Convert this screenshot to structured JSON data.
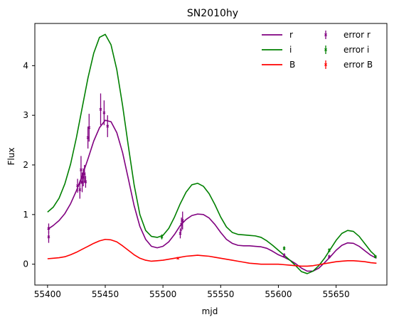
{
  "chart_data": {
    "type": "line",
    "title": "SN2010hy",
    "xlabel": "mjd",
    "ylabel": "Flux",
    "xlim": [
      55389,
      55694
    ],
    "ylim": [
      -0.42,
      4.85
    ],
    "xticks": [
      55400,
      55450,
      55500,
      55550,
      55600,
      55650
    ],
    "yticks": [
      0,
      1,
      2,
      3,
      4
    ],
    "grid": false,
    "legend_position": "top-right",
    "series": [
      {
        "name": "r",
        "kind": "line",
        "color": "#800080",
        "x": [
          55400,
          55405,
          55410,
          55415,
          55420,
          55425,
          55430,
          55435,
          55440,
          55445,
          55450,
          55455,
          55460,
          55465,
          55470,
          55475,
          55480,
          55485,
          55490,
          55495,
          55500,
          55505,
          55510,
          55515,
          55520,
          55525,
          55530,
          55535,
          55540,
          55545,
          55550,
          55555,
          55560,
          55565,
          55570,
          55575,
          55580,
          55585,
          55590,
          55595,
          55600,
          55605,
          55610,
          55615,
          55620,
          55625,
          55630,
          55635,
          55640,
          55645,
          55650,
          55655,
          55660,
          55665,
          55670,
          55675,
          55680,
          55685
        ],
        "y": [
          0.7,
          0.78,
          0.88,
          1.02,
          1.22,
          1.48,
          1.78,
          2.12,
          2.48,
          2.75,
          2.9,
          2.87,
          2.65,
          2.25,
          1.72,
          1.18,
          0.76,
          0.5,
          0.36,
          0.33,
          0.36,
          0.45,
          0.6,
          0.78,
          0.9,
          0.98,
          1.01,
          1.0,
          0.93,
          0.8,
          0.64,
          0.5,
          0.42,
          0.38,
          0.37,
          0.37,
          0.36,
          0.35,
          0.32,
          0.26,
          0.19,
          0.14,
          0.08,
          0.01,
          -0.08,
          -0.14,
          -0.14,
          -0.08,
          0.03,
          0.15,
          0.28,
          0.38,
          0.43,
          0.42,
          0.36,
          0.27,
          0.18,
          0.12
        ]
      },
      {
        "name": "i",
        "kind": "line",
        "color": "#008000",
        "x": [
          55400,
          55405,
          55410,
          55415,
          55420,
          55425,
          55430,
          55435,
          55440,
          55445,
          55450,
          55455,
          55460,
          55465,
          55470,
          55475,
          55480,
          55485,
          55490,
          55495,
          55500,
          55505,
          55510,
          55515,
          55520,
          55525,
          55530,
          55535,
          55540,
          55545,
          55550,
          55555,
          55560,
          55565,
          55570,
          55575,
          55580,
          55585,
          55590,
          55595,
          55600,
          55605,
          55610,
          55615,
          55620,
          55625,
          55630,
          55635,
          55640,
          55645,
          55650,
          55655,
          55660,
          55665,
          55670,
          55675,
          55680,
          55685
        ],
        "y": [
          1.05,
          1.15,
          1.33,
          1.62,
          2.02,
          2.55,
          3.15,
          3.75,
          4.25,
          4.57,
          4.63,
          4.42,
          3.92,
          3.2,
          2.38,
          1.6,
          1.0,
          0.68,
          0.56,
          0.54,
          0.58,
          0.72,
          0.95,
          1.22,
          1.45,
          1.6,
          1.63,
          1.57,
          1.42,
          1.2,
          0.95,
          0.75,
          0.64,
          0.6,
          0.59,
          0.58,
          0.57,
          0.54,
          0.47,
          0.38,
          0.28,
          0.18,
          0.08,
          -0.03,
          -0.15,
          -0.19,
          -0.14,
          -0.03,
          0.12,
          0.3,
          0.48,
          0.62,
          0.68,
          0.66,
          0.56,
          0.41,
          0.26,
          0.15
        ]
      },
      {
        "name": "B",
        "kind": "line",
        "color": "#ff0000",
        "x": [
          55400,
          55405,
          55410,
          55415,
          55420,
          55425,
          55430,
          55435,
          55440,
          55445,
          55450,
          55455,
          55460,
          55465,
          55470,
          55475,
          55480,
          55485,
          55490,
          55495,
          55500,
          55505,
          55510,
          55515,
          55520,
          55525,
          55530,
          55535,
          55540,
          55545,
          55550,
          55555,
          55560,
          55565,
          55570,
          55575,
          55580,
          55585,
          55590,
          55595,
          55600,
          55605,
          55610,
          55615,
          55620,
          55625,
          55630,
          55635,
          55640,
          55645,
          55650,
          55655,
          55660,
          55665,
          55670,
          55675,
          55680,
          55685
        ],
        "y": [
          0.11,
          0.12,
          0.13,
          0.15,
          0.19,
          0.24,
          0.3,
          0.36,
          0.42,
          0.47,
          0.5,
          0.49,
          0.45,
          0.37,
          0.28,
          0.19,
          0.12,
          0.08,
          0.06,
          0.07,
          0.08,
          0.1,
          0.12,
          0.14,
          0.16,
          0.17,
          0.18,
          0.17,
          0.16,
          0.14,
          0.12,
          0.1,
          0.08,
          0.06,
          0.04,
          0.02,
          0.01,
          0.0,
          0.0,
          0.0,
          0.0,
          -0.01,
          -0.02,
          -0.03,
          -0.04,
          -0.04,
          -0.03,
          -0.01,
          0.01,
          0.03,
          0.05,
          0.06,
          0.07,
          0.07,
          0.06,
          0.05,
          0.03,
          0.02
        ]
      },
      {
        "name": "error r",
        "kind": "errorbar",
        "color": "#800080",
        "x": [
          55401,
          55401,
          55426,
          55428,
          55429,
          55430,
          55431,
          55432,
          55433,
          55435,
          55436,
          55446,
          55449,
          55452,
          55515,
          55516,
          55517,
          55605,
          55644
        ],
        "y": [
          0.55,
          0.72,
          1.58,
          1.5,
          1.9,
          1.65,
          1.75,
          1.82,
          1.66,
          2.55,
          2.75,
          3.12,
          3.05,
          2.78,
          0.62,
          0.8,
          0.88,
          0.18,
          0.15
        ],
        "err": [
          0.12,
          0.1,
          0.14,
          0.18,
          0.28,
          0.2,
          0.18,
          0.18,
          0.12,
          0.22,
          0.28,
          0.32,
          0.25,
          0.22,
          0.1,
          0.14,
          0.18,
          0.04,
          0.04
        ]
      },
      {
        "name": "error i",
        "kind": "errorbar",
        "color": "#008000",
        "x": [
          55499,
          55605,
          55644,
          55684
        ],
        "y": [
          0.55,
          0.32,
          0.28,
          0.15
        ],
        "err": [
          0.05,
          0.04,
          0.04,
          0.03
        ]
      },
      {
        "name": "error B",
        "kind": "errorbar",
        "color": "#ff0000",
        "x": [
          55513
        ],
        "y": [
          0.12
        ],
        "err": [
          0.02
        ]
      }
    ]
  }
}
